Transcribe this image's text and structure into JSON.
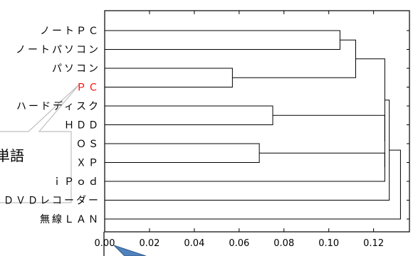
{
  "chart_data": {
    "type": "dendrogram",
    "orientation": "horizontal",
    "leaves": [
      "ノートＰＣ",
      "ノートパソコン",
      "パソコン",
      "ＰＣ",
      "ハードディスク",
      "ＨＤＤ",
      "ＯＳ",
      "ＸＰ",
      "ｉＰｏｄ",
      "ＤＶＤレコーダー",
      "無線ＬＡＮ"
    ],
    "highlighted_leaf": "ＰＣ",
    "highlight_color": "#ff0000",
    "merges": [
      {
        "a": 0,
        "b": 1,
        "height": 0.105
      },
      {
        "a": 2,
        "b": 3,
        "height": 0.057
      },
      {
        "a": 11,
        "b": 12,
        "height": 0.112
      },
      {
        "a": 4,
        "b": 5,
        "height": 0.075
      },
      {
        "a": 6,
        "b": 7,
        "height": 0.069
      },
      {
        "a": 15,
        "b": 8,
        "height": 0.125
      },
      {
        "a": 14,
        "b": 16,
        "height": 0.125
      },
      {
        "a": 13,
        "b": 17,
        "height": 0.125
      },
      {
        "a": 18,
        "b": 9,
        "height": 0.127
      },
      {
        "a": 19,
        "b": 10,
        "height": 0.132
      }
    ],
    "x_ticks": [
      0.0,
      0.02,
      0.04,
      0.06,
      0.08,
      0.1,
      0.12
    ],
    "x_tick_labels": [
      "0.00",
      "0.02",
      "0.04",
      "0.06",
      "0.08",
      "0.10",
      "0.12"
    ],
    "xlim": [
      0.0,
      0.136
    ],
    "grid": false
  },
  "annotation": {
    "callout_text": "単語",
    "callout_fill": "#ffffff",
    "pointer_fill": "#4f81bd"
  }
}
